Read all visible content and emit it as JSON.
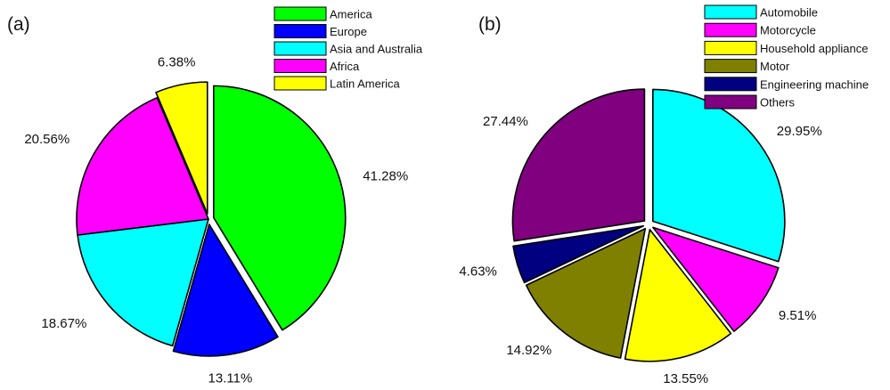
{
  "chart_data": [
    {
      "type": "pie",
      "panel_label": "(a)",
      "categories": [
        "America",
        "Europe",
        "Asia and Australia",
        "Africa",
        "Latin America"
      ],
      "values": [
        41.28,
        13.11,
        18.67,
        20.56,
        6.38
      ],
      "value_labels": [
        "41.28%",
        "13.11%",
        "18.67%",
        "20.56%",
        "6.38%"
      ],
      "colors": [
        "#00ff00",
        "#0000ff",
        "#00ffff",
        "#ff00ff",
        "#ffff00"
      ],
      "exploded": [
        true,
        true,
        false,
        false,
        true
      ],
      "legend": "top-right"
    },
    {
      "type": "pie",
      "panel_label": "(b)",
      "categories": [
        "Automobile",
        "Motorcycle",
        "Household appliance",
        "Motor",
        "Engineering machine",
        "Others"
      ],
      "values": [
        29.95,
        9.51,
        13.55,
        14.92,
        4.63,
        27.44
      ],
      "value_labels": [
        "29.95%",
        "9.51%",
        "13.55%",
        "14.92%",
        "4.63%",
        "27.44%"
      ],
      "colors": [
        "#00ffff",
        "#ff00ff",
        "#ffff00",
        "#808000",
        "#000080",
        "#800080"
      ],
      "exploded": [
        true,
        true,
        true,
        true,
        true,
        true
      ],
      "legend": "top-right"
    }
  ]
}
